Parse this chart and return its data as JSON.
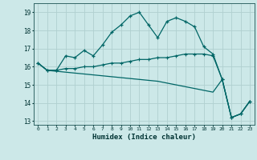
{
  "xlabel": "Humidex (Indice chaleur)",
  "background_color": "#cce8e8",
  "grid_color": "#b0d0d0",
  "line_color": "#006666",
  "xlim": [
    -0.5,
    23.5
  ],
  "ylim": [
    12.8,
    19.5
  ],
  "yticks": [
    13,
    14,
    15,
    16,
    17,
    18,
    19
  ],
  "xticks": [
    0,
    1,
    2,
    3,
    4,
    5,
    6,
    7,
    8,
    9,
    10,
    11,
    12,
    13,
    14,
    15,
    16,
    17,
    18,
    19,
    20,
    21,
    22,
    23
  ],
  "line1_x": [
    0,
    1,
    2,
    3,
    4,
    5,
    6,
    7,
    8,
    9,
    10,
    11,
    12,
    13,
    14,
    15,
    16,
    17,
    18,
    19,
    20,
    21,
    22,
    23
  ],
  "line1_y": [
    16.2,
    15.8,
    15.8,
    16.6,
    16.5,
    16.9,
    16.6,
    17.2,
    17.9,
    18.3,
    18.8,
    19.0,
    18.3,
    17.6,
    18.5,
    18.7,
    18.5,
    18.2,
    17.1,
    16.7,
    15.3,
    13.2,
    13.4,
    14.1
  ],
  "line2_x": [
    0,
    1,
    2,
    3,
    4,
    5,
    6,
    7,
    8,
    9,
    10,
    11,
    12,
    13,
    14,
    15,
    16,
    17,
    18,
    19,
    20,
    21,
    22,
    23
  ],
  "line2_y": [
    16.2,
    15.8,
    15.8,
    15.9,
    15.9,
    16.0,
    16.0,
    16.1,
    16.2,
    16.2,
    16.3,
    16.4,
    16.4,
    16.5,
    16.5,
    16.6,
    16.7,
    16.7,
    16.7,
    16.6,
    15.3,
    13.2,
    13.4,
    14.1
  ],
  "line3_x": [
    0,
    1,
    2,
    3,
    4,
    5,
    6,
    7,
    8,
    9,
    10,
    11,
    12,
    13,
    14,
    15,
    16,
    17,
    18,
    19,
    20,
    21,
    22,
    23
  ],
  "line3_y": [
    16.2,
    15.8,
    15.75,
    15.7,
    15.65,
    15.6,
    15.55,
    15.5,
    15.45,
    15.4,
    15.35,
    15.3,
    15.25,
    15.2,
    15.1,
    15.0,
    14.9,
    14.8,
    14.7,
    14.6,
    15.3,
    13.2,
    13.4,
    14.1
  ]
}
